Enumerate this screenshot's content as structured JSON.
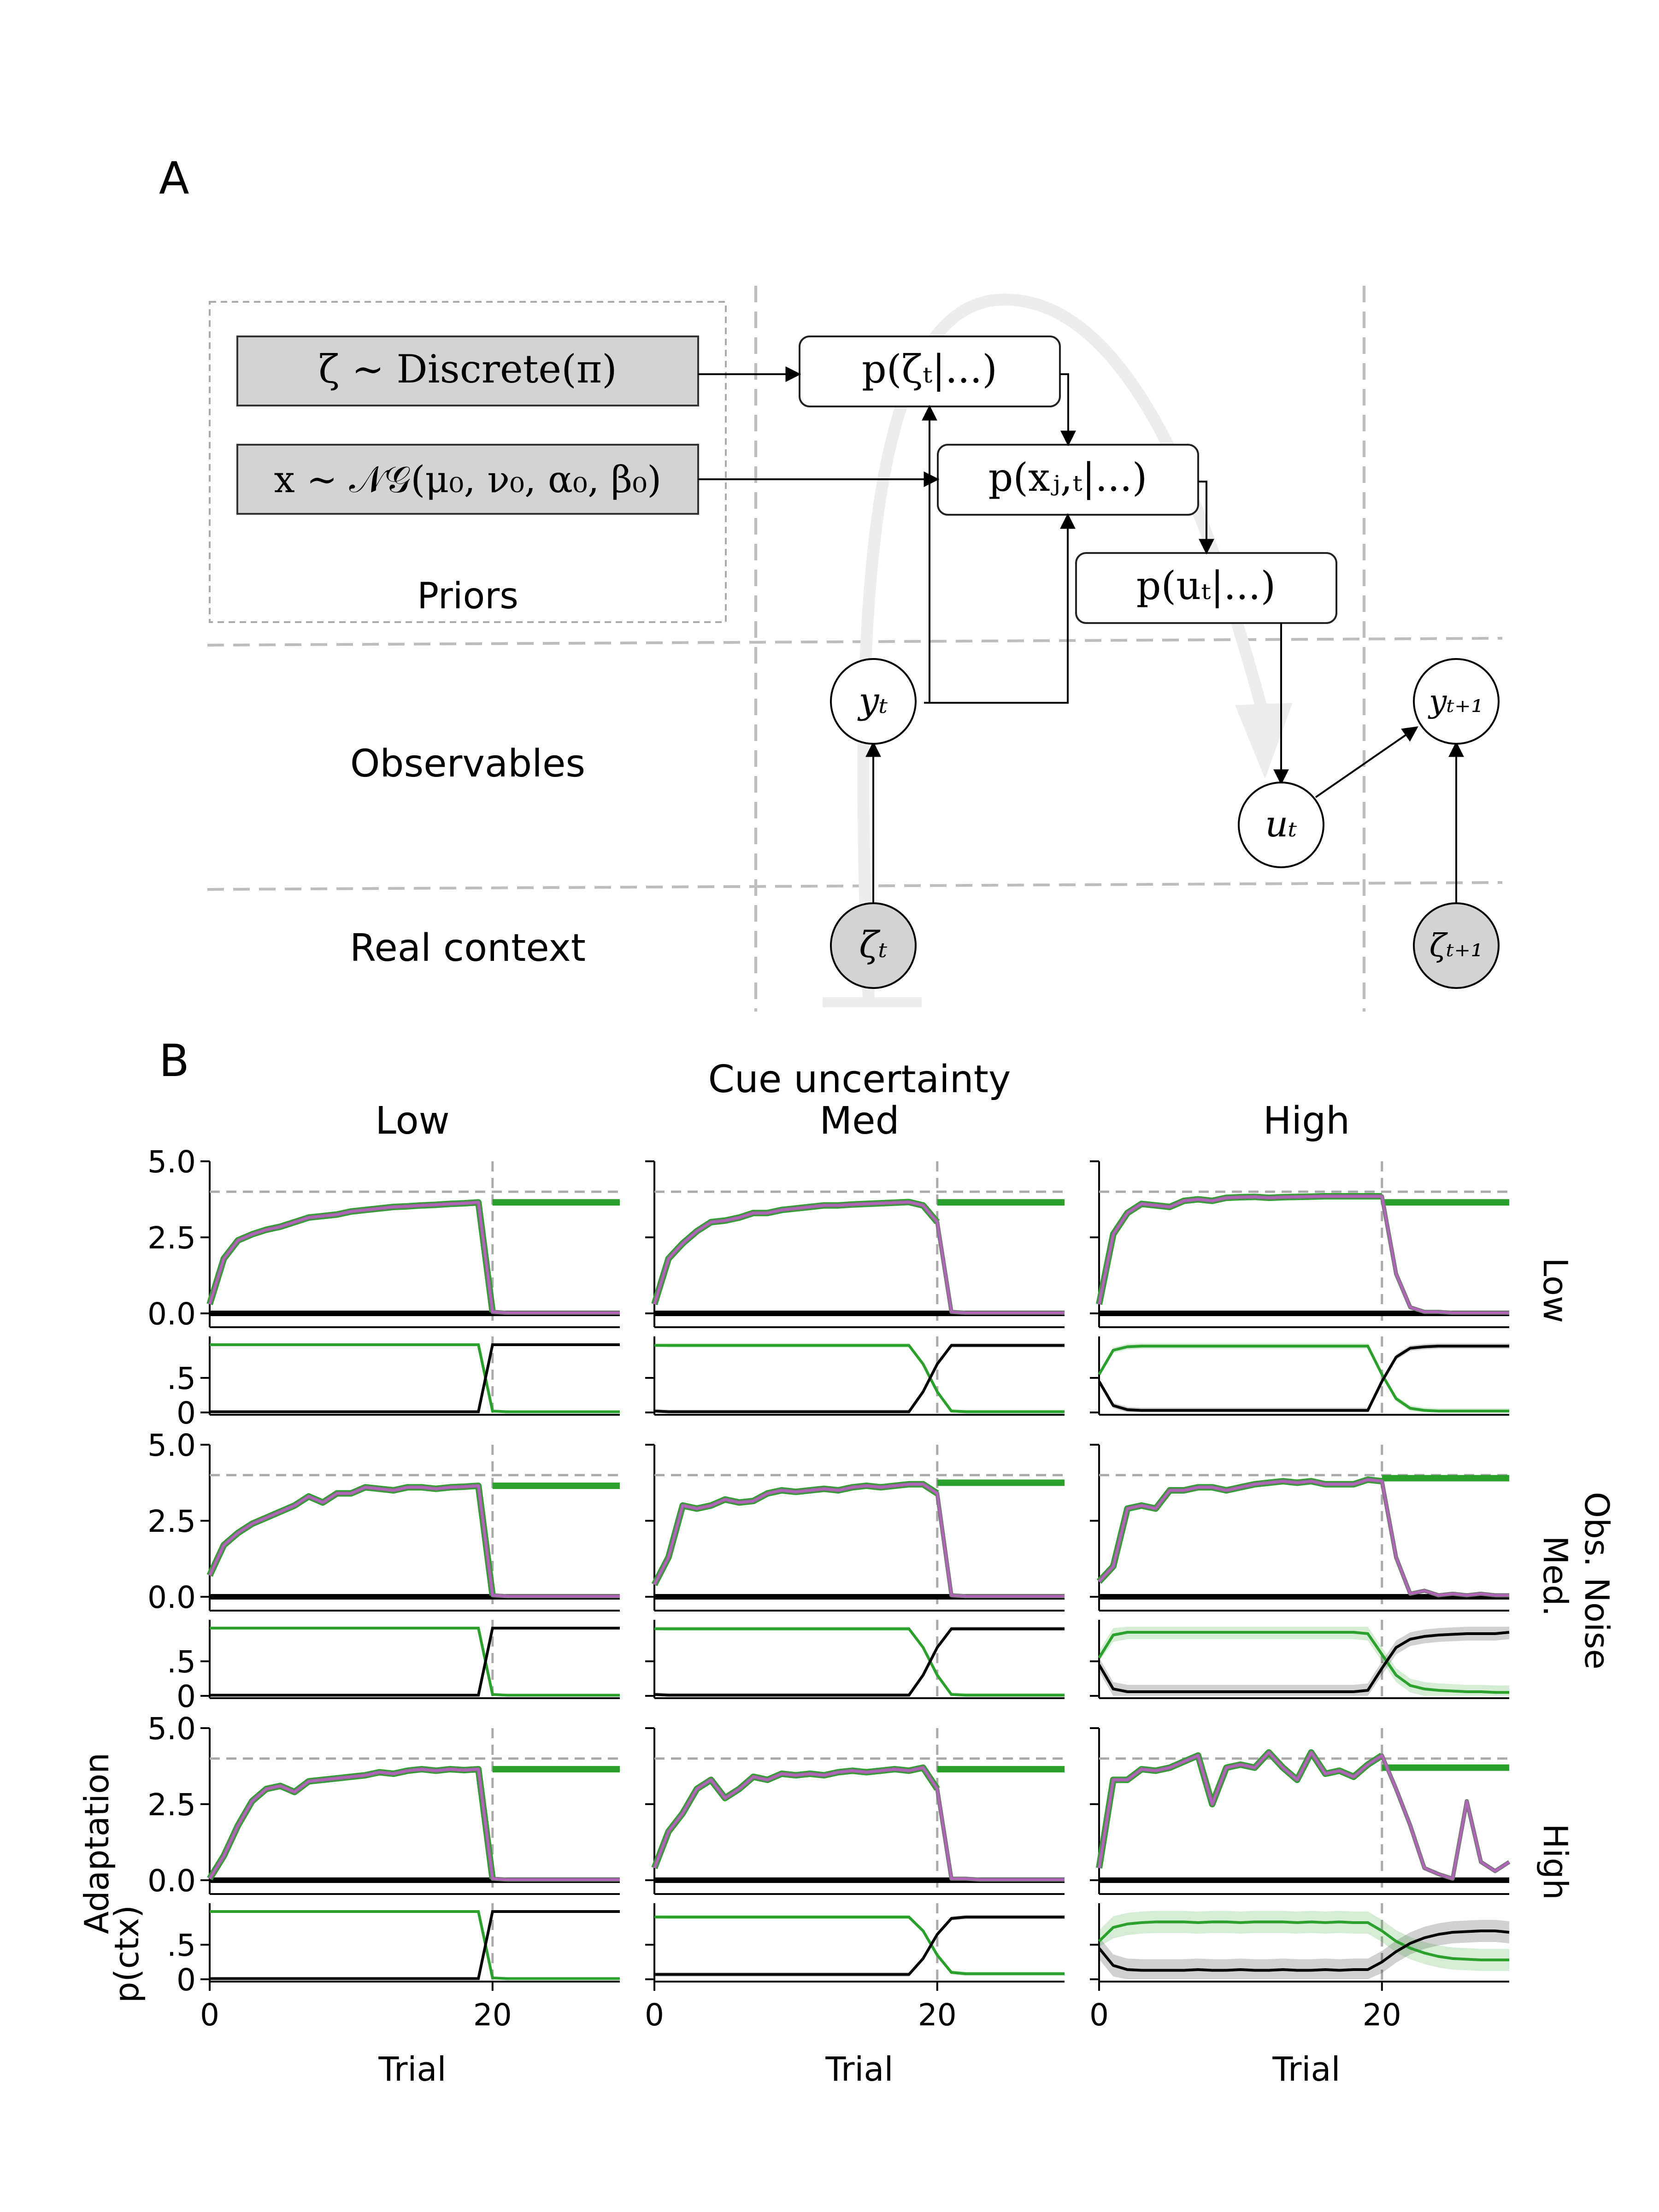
{
  "panel_a": {
    "label": "A",
    "prior_discrete": "ζ ∼ Discrete(π)",
    "prior_ng": "x ∼ 𝒩𝒢(μ₀, ν₀, α₀, β₀)",
    "priors_label": "Priors",
    "p_zeta": "p(ζₜ|...)",
    "p_x": "p(xⱼ,ₜ|...)",
    "p_u": "p(uₜ|...)",
    "observables_label": "Observables",
    "real_context_label": "Real context",
    "y_t": "yₜ",
    "u_t": "uₜ",
    "y_t1": "yₜ₊₁",
    "zeta_t": "ζₜ",
    "zeta_t1": "ζₜ₊₁"
  },
  "panel_b": {
    "label": "B",
    "super_title": "Cue uncertainty",
    "col_titles": [
      "Low",
      "Med",
      "High"
    ],
    "row_titles": [
      "Low",
      "Med.",
      "High"
    ],
    "row_super_title": "Obs. Noise",
    "ylabel_adapt": "Adaptation",
    "ylabel_pctx": "p(ctx)",
    "xlabel": "Trial",
    "adapt_ticks": [
      "5.0",
      "2.5",
      "0.0"
    ],
    "pctx_ticks": [
      ".5",
      "0"
    ],
    "x_ticks": [
      "0",
      "20"
    ],
    "colors": {
      "context1": "#2ca02c",
      "context2": "#000000",
      "adaptation": "#b065b8",
      "reference": "#aaaaaa"
    }
  },
  "chart_data": {
    "type": "line",
    "x": [
      0,
      1,
      2,
      3,
      4,
      5,
      6,
      7,
      8,
      9,
      10,
      11,
      12,
      13,
      14,
      15,
      16,
      17,
      18,
      19,
      20,
      21,
      22,
      23,
      24,
      25,
      26,
      27,
      28,
      29
    ],
    "xlim": [
      0,
      29
    ],
    "adaptation_ylim": [
      0,
      5
    ],
    "pctx_ylim": [
      0,
      1
    ],
    "switch_trial": 20,
    "target_level": 4.0,
    "adaptation": [
      [
        [
          0.3,
          1.8,
          2.4,
          2.6,
          2.75,
          2.85,
          3.0,
          3.15,
          3.2,
          3.25,
          3.35,
          3.4,
          3.45,
          3.5,
          3.52,
          3.55,
          3.57,
          3.6,
          3.62,
          3.65,
          0.05,
          0.02,
          0.02,
          0.02,
          0.02,
          0.02,
          0.02,
          0.02,
          0.02,
          0.02
        ],
        [
          0.3,
          1.8,
          2.3,
          2.7,
          3.0,
          3.05,
          3.15,
          3.3,
          3.3,
          3.4,
          3.45,
          3.5,
          3.55,
          3.55,
          3.58,
          3.6,
          3.62,
          3.64,
          3.66,
          3.55,
          3.0,
          0.05,
          0.02,
          0.02,
          0.02,
          0.02,
          0.02,
          0.02,
          0.02,
          0.02
        ],
        [
          0.3,
          2.6,
          3.3,
          3.6,
          3.55,
          3.5,
          3.7,
          3.75,
          3.7,
          3.8,
          3.82,
          3.83,
          3.8,
          3.82,
          3.83,
          3.84,
          3.85,
          3.85,
          3.85,
          3.85,
          3.85,
          1.3,
          0.2,
          0.05,
          0.05,
          0.02,
          0.02,
          0.02,
          0.02,
          0.02
        ]
      ],
      [
        [
          0.7,
          1.7,
          2.1,
          2.4,
          2.6,
          2.8,
          3.0,
          3.3,
          3.1,
          3.4,
          3.4,
          3.6,
          3.55,
          3.5,
          3.6,
          3.6,
          3.55,
          3.6,
          3.62,
          3.65,
          0.05,
          0.02,
          0.02,
          0.02,
          0.02,
          0.02,
          0.02,
          0.02,
          0.02,
          0.02
        ],
        [
          0.4,
          1.3,
          3.0,
          2.9,
          3.0,
          3.2,
          3.1,
          3.15,
          3.4,
          3.5,
          3.45,
          3.5,
          3.55,
          3.5,
          3.6,
          3.65,
          3.6,
          3.65,
          3.7,
          3.7,
          3.4,
          0.05,
          0.02,
          0.02,
          0.02,
          0.02,
          0.02,
          0.02,
          0.02,
          0.02
        ],
        [
          0.5,
          1.0,
          2.9,
          3.0,
          2.9,
          3.5,
          3.5,
          3.6,
          3.6,
          3.5,
          3.6,
          3.7,
          3.75,
          3.8,
          3.75,
          3.8,
          3.7,
          3.7,
          3.7,
          3.85,
          3.8,
          1.3,
          0.1,
          0.2,
          0.05,
          0.1,
          0.05,
          0.1,
          0.05,
          0.05
        ]
      ],
      [
        [
          0.05,
          0.8,
          1.8,
          2.6,
          3.0,
          3.1,
          2.9,
          3.25,
          3.3,
          3.35,
          3.4,
          3.45,
          3.55,
          3.5,
          3.6,
          3.65,
          3.6,
          3.65,
          3.62,
          3.65,
          0.05,
          0.02,
          0.02,
          0.02,
          0.02,
          0.02,
          0.02,
          0.02,
          0.02,
          0.02
        ],
        [
          0.4,
          1.6,
          2.2,
          3.0,
          3.3,
          2.7,
          3.0,
          3.4,
          3.3,
          3.5,
          3.45,
          3.5,
          3.45,
          3.55,
          3.6,
          3.55,
          3.6,
          3.65,
          3.6,
          3.7,
          3.0,
          0.05,
          0.05,
          0.02,
          0.02,
          0.02,
          0.02,
          0.02,
          0.02,
          0.02
        ],
        [
          0.4,
          3.3,
          3.3,
          3.65,
          3.6,
          3.7,
          3.9,
          4.1,
          2.5,
          3.7,
          3.8,
          3.7,
          4.2,
          3.7,
          3.3,
          4.2,
          3.5,
          3.6,
          3.4,
          3.8,
          4.1,
          3.0,
          1.8,
          0.4,
          0.2,
          0.05,
          2.6,
          0.6,
          0.3,
          0.6
        ]
      ]
    ],
    "context1_estimate_post_switch": [
      [
        3.65,
        3.65,
        3.65
      ],
      [
        3.65,
        3.75,
        3.9
      ],
      [
        3.65,
        3.65,
        3.7
      ]
    ],
    "p_ctx1": [
      [
        [
          0.98,
          0.98,
          0.98,
          0.98,
          0.98,
          0.98,
          0.98,
          0.98,
          0.98,
          0.98,
          0.98,
          0.98,
          0.98,
          0.98,
          0.98,
          0.98,
          0.98,
          0.98,
          0.98,
          0.98,
          0.02,
          0.01,
          0.01,
          0.01,
          0.01,
          0.01,
          0.01,
          0.01,
          0.01,
          0.01
        ],
        [
          0.97,
          0.97,
          0.97,
          0.97,
          0.97,
          0.97,
          0.97,
          0.97,
          0.97,
          0.97,
          0.97,
          0.97,
          0.97,
          0.97,
          0.97,
          0.97,
          0.97,
          0.97,
          0.97,
          0.7,
          0.3,
          0.02,
          0.01,
          0.01,
          0.01,
          0.01,
          0.01,
          0.01,
          0.01,
          0.01
        ],
        [
          0.55,
          0.9,
          0.95,
          0.96,
          0.96,
          0.96,
          0.96,
          0.96,
          0.96,
          0.96,
          0.96,
          0.96,
          0.96,
          0.96,
          0.96,
          0.96,
          0.96,
          0.96,
          0.96,
          0.96,
          0.55,
          0.2,
          0.06,
          0.03,
          0.02,
          0.02,
          0.02,
          0.02,
          0.02,
          0.02
        ]
      ],
      [
        [
          0.98,
          0.98,
          0.98,
          0.98,
          0.98,
          0.98,
          0.98,
          0.98,
          0.98,
          0.98,
          0.98,
          0.98,
          0.98,
          0.98,
          0.98,
          0.98,
          0.98,
          0.98,
          0.98,
          0.98,
          0.02,
          0.01,
          0.01,
          0.01,
          0.01,
          0.01,
          0.01,
          0.01,
          0.01,
          0.01
        ],
        [
          0.97,
          0.97,
          0.97,
          0.97,
          0.97,
          0.97,
          0.97,
          0.97,
          0.97,
          0.97,
          0.97,
          0.97,
          0.97,
          0.97,
          0.97,
          0.97,
          0.97,
          0.97,
          0.97,
          0.7,
          0.3,
          0.02,
          0.01,
          0.01,
          0.01,
          0.01,
          0.01,
          0.01,
          0.01,
          0.01
        ],
        [
          0.55,
          0.88,
          0.92,
          0.92,
          0.92,
          0.92,
          0.92,
          0.92,
          0.92,
          0.92,
          0.92,
          0.92,
          0.92,
          0.92,
          0.92,
          0.92,
          0.92,
          0.92,
          0.92,
          0.9,
          0.6,
          0.3,
          0.15,
          0.1,
          0.08,
          0.07,
          0.06,
          0.06,
          0.05,
          0.05
        ]
      ],
      [
        [
          0.98,
          0.98,
          0.98,
          0.98,
          0.98,
          0.98,
          0.98,
          0.98,
          0.98,
          0.98,
          0.98,
          0.98,
          0.98,
          0.98,
          0.98,
          0.98,
          0.98,
          0.98,
          0.98,
          0.98,
          0.02,
          0.01,
          0.01,
          0.01,
          0.01,
          0.01,
          0.01,
          0.01,
          0.01,
          0.01
        ],
        [
          0.9,
          0.9,
          0.9,
          0.9,
          0.9,
          0.9,
          0.9,
          0.9,
          0.9,
          0.9,
          0.9,
          0.9,
          0.9,
          0.9,
          0.9,
          0.9,
          0.9,
          0.9,
          0.9,
          0.7,
          0.35,
          0.1,
          0.08,
          0.08,
          0.08,
          0.08,
          0.08,
          0.08,
          0.08,
          0.08
        ],
        [
          0.55,
          0.75,
          0.8,
          0.82,
          0.83,
          0.83,
          0.83,
          0.82,
          0.83,
          0.83,
          0.82,
          0.83,
          0.83,
          0.83,
          0.82,
          0.83,
          0.82,
          0.83,
          0.82,
          0.82,
          0.7,
          0.55,
          0.45,
          0.38,
          0.33,
          0.3,
          0.29,
          0.28,
          0.28,
          0.28
        ]
      ]
    ],
    "p_ctx2": [
      [
        [
          0.01,
          0.01,
          0.01,
          0.01,
          0.01,
          0.01,
          0.01,
          0.01,
          0.01,
          0.01,
          0.01,
          0.01,
          0.01,
          0.01,
          0.01,
          0.01,
          0.01,
          0.01,
          0.01,
          0.01,
          0.98,
          0.98,
          0.98,
          0.98,
          0.98,
          0.98,
          0.98,
          0.98,
          0.98,
          0.98
        ],
        [
          0.02,
          0.01,
          0.01,
          0.01,
          0.01,
          0.01,
          0.01,
          0.01,
          0.01,
          0.01,
          0.01,
          0.01,
          0.01,
          0.01,
          0.01,
          0.01,
          0.01,
          0.01,
          0.01,
          0.3,
          0.7,
          0.97,
          0.97,
          0.97,
          0.97,
          0.97,
          0.97,
          0.97,
          0.97,
          0.97
        ],
        [
          0.45,
          0.1,
          0.04,
          0.03,
          0.03,
          0.03,
          0.03,
          0.03,
          0.03,
          0.03,
          0.03,
          0.03,
          0.03,
          0.03,
          0.03,
          0.03,
          0.03,
          0.03,
          0.03,
          0.03,
          0.45,
          0.8,
          0.93,
          0.95,
          0.96,
          0.96,
          0.96,
          0.96,
          0.96,
          0.96
        ]
      ],
      [
        [
          0.01,
          0.01,
          0.01,
          0.01,
          0.01,
          0.01,
          0.01,
          0.01,
          0.01,
          0.01,
          0.01,
          0.01,
          0.01,
          0.01,
          0.01,
          0.01,
          0.01,
          0.01,
          0.01,
          0.01,
          0.98,
          0.98,
          0.98,
          0.98,
          0.98,
          0.98,
          0.98,
          0.98,
          0.98,
          0.98
        ],
        [
          0.02,
          0.01,
          0.01,
          0.01,
          0.01,
          0.01,
          0.01,
          0.01,
          0.01,
          0.01,
          0.01,
          0.01,
          0.01,
          0.01,
          0.01,
          0.01,
          0.01,
          0.01,
          0.01,
          0.3,
          0.7,
          0.97,
          0.97,
          0.97,
          0.97,
          0.97,
          0.97,
          0.97,
          0.97,
          0.97
        ],
        [
          0.45,
          0.1,
          0.06,
          0.06,
          0.06,
          0.06,
          0.06,
          0.06,
          0.06,
          0.06,
          0.06,
          0.06,
          0.06,
          0.06,
          0.06,
          0.06,
          0.06,
          0.06,
          0.06,
          0.08,
          0.4,
          0.7,
          0.82,
          0.86,
          0.88,
          0.89,
          0.9,
          0.9,
          0.9,
          0.92
        ]
      ],
      [
        [
          0.01,
          0.01,
          0.01,
          0.01,
          0.01,
          0.01,
          0.01,
          0.01,
          0.01,
          0.01,
          0.01,
          0.01,
          0.01,
          0.01,
          0.01,
          0.01,
          0.01,
          0.01,
          0.01,
          0.01,
          0.98,
          0.98,
          0.98,
          0.98,
          0.98,
          0.98,
          0.98,
          0.98,
          0.98,
          0.98
        ],
        [
          0.07,
          0.07,
          0.07,
          0.07,
          0.07,
          0.07,
          0.07,
          0.07,
          0.07,
          0.07,
          0.07,
          0.07,
          0.07,
          0.07,
          0.07,
          0.07,
          0.07,
          0.07,
          0.07,
          0.3,
          0.65,
          0.88,
          0.9,
          0.9,
          0.9,
          0.9,
          0.9,
          0.9,
          0.9,
          0.9
        ],
        [
          0.45,
          0.2,
          0.14,
          0.13,
          0.13,
          0.13,
          0.13,
          0.14,
          0.13,
          0.13,
          0.14,
          0.13,
          0.13,
          0.14,
          0.13,
          0.13,
          0.14,
          0.13,
          0.14,
          0.14,
          0.25,
          0.4,
          0.52,
          0.6,
          0.65,
          0.68,
          0.69,
          0.7,
          0.7,
          0.68
        ]
      ]
    ]
  }
}
